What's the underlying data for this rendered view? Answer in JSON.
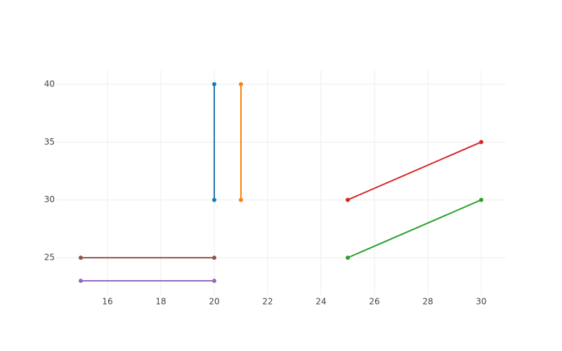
{
  "chart_data": {
    "type": "line",
    "series": [
      {
        "color": "#1f77b4",
        "x": [
          20,
          20
        ],
        "values": [
          30,
          40
        ]
      },
      {
        "color": "#ff7f0e",
        "x": [
          21,
          21
        ],
        "values": [
          30,
          40
        ]
      },
      {
        "color": "#2ca02c",
        "x": [
          25,
          30
        ],
        "values": [
          25,
          30
        ]
      },
      {
        "color": "#d62728",
        "x": [
          25,
          30
        ],
        "values": [
          30,
          35
        ]
      },
      {
        "color": "#9467bd",
        "x": [
          15,
          20
        ],
        "values": [
          23,
          23
        ]
      },
      {
        "color": "#8c564b",
        "x": [
          15,
          20
        ],
        "values": [
          25,
          25
        ]
      }
    ],
    "xlim": [
      14.08,
      30.92
    ],
    "xticks": [
      16,
      18,
      20,
      22,
      24,
      26,
      28,
      30
    ],
    "ylim": [
      21.79,
      41.21
    ],
    "yticks": [
      25,
      30,
      35,
      40
    ],
    "grid": true
  }
}
